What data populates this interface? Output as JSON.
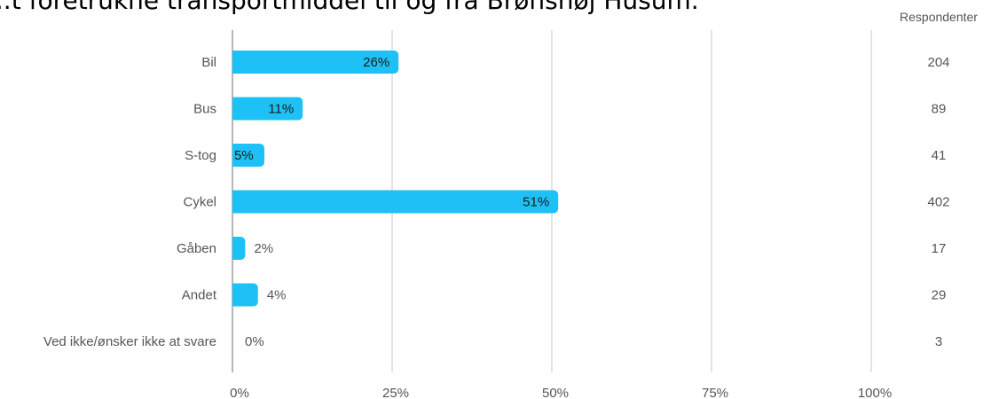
{
  "title": "...t foretrukne transportmiddel til og fra Brønshøj Husum.",
  "responses_header": "Respondenter",
  "colors": {
    "bar": "#1ec1f5",
    "grid": "#c8c8c8",
    "axis": "#9e9e9e",
    "text": "#555555",
    "bar_label_inside": "#1a1a1a"
  },
  "chart_data": {
    "type": "bar",
    "orientation": "horizontal",
    "title": "",
    "xlabel": "",
    "ylabel": "",
    "xlim": [
      0,
      100
    ],
    "x_ticks": [
      "0%",
      "25%",
      "50%",
      "75%",
      "100%"
    ],
    "categories": [
      "Bil",
      "Bus",
      "S-tog",
      "Cykel",
      "Gåben",
      "Andet",
      "Ved ikke/ønsker ikke at svare"
    ],
    "values": [
      26,
      11,
      5,
      51,
      2,
      4,
      0
    ],
    "value_labels": [
      "26%",
      "11%",
      "5%",
      "51%",
      "2%",
      "4%",
      "0%"
    ],
    "respondents": [
      "204",
      "89",
      "41",
      "402",
      "17",
      "29",
      "3"
    ]
  }
}
